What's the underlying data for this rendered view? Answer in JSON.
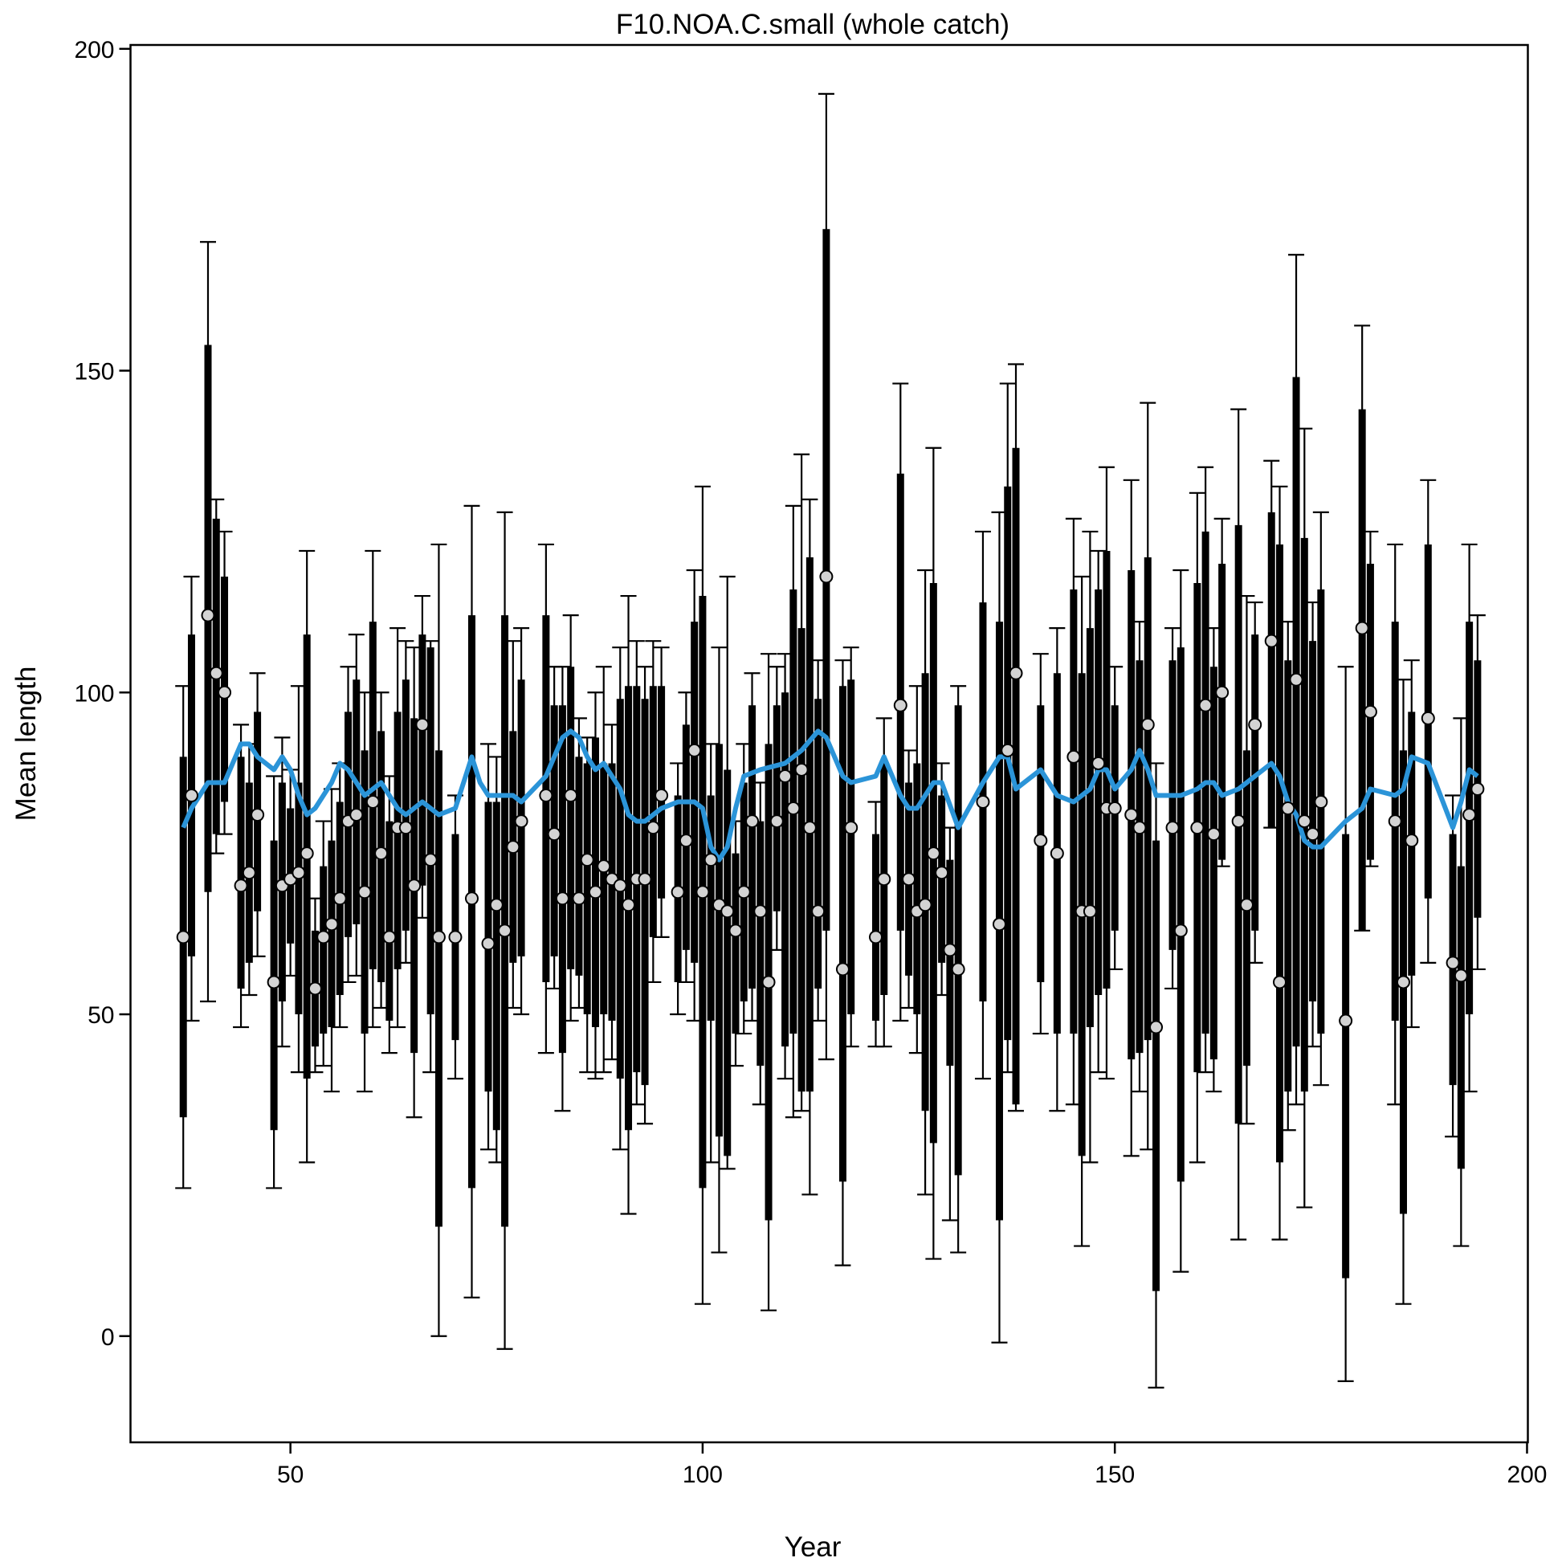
{
  "chart_data": {
    "type": "errorbar",
    "title": "F10.NOA.C.small (whole catch)",
    "xlabel": "Year",
    "ylabel": "Mean length",
    "xlim": [
      30.6,
      200.1
    ],
    "ylim": [
      -16.5,
      200.6
    ],
    "xticks": [
      50,
      100,
      150,
      200
    ],
    "yticks": [
      0,
      50,
      100,
      150,
      200
    ],
    "point_color": "#d3d3d3",
    "bar_color": "#000000",
    "x": [
      37,
      38,
      40,
      41,
      42,
      44,
      45,
      46,
      48,
      49,
      50,
      51,
      52,
      53,
      54,
      55,
      56,
      57,
      58,
      59,
      60,
      61,
      62,
      63,
      64,
      65,
      66,
      67,
      68,
      70,
      72,
      74,
      75,
      76,
      77,
      78,
      81,
      82,
      83,
      84,
      85,
      86,
      87,
      88,
      89,
      90,
      91,
      92,
      93,
      94,
      95,
      97,
      98,
      99,
      100,
      101,
      102,
      103,
      104,
      105,
      106,
      107,
      108,
      109,
      110,
      111,
      112,
      113,
      114,
      115,
      117,
      118,
      121,
      122,
      124,
      125,
      126,
      127,
      128,
      129,
      130,
      131,
      134,
      136,
      137,
      138,
      141,
      143,
      145,
      146,
      147,
      148,
      149,
      150,
      152,
      153,
      154,
      155,
      157,
      158,
      160,
      161,
      162,
      163,
      165,
      166,
      167,
      169,
      170,
      171,
      172,
      173,
      174,
      175,
      178,
      180,
      181,
      184,
      185,
      186,
      188,
      191,
      192,
      193,
      194
    ],
    "values": [
      62,
      84,
      112,
      103,
      100,
      70,
      72,
      81,
      55,
      70,
      71,
      72,
      75,
      54,
      62,
      64,
      68,
      80,
      81,
      69,
      83,
      75,
      62,
      79,
      79,
      70,
      95,
      74,
      62,
      62,
      68,
      61,
      67,
      63,
      76,
      80,
      84,
      78,
      68,
      84,
      68,
      74,
      69,
      73,
      71,
      70,
      67,
      71,
      71,
      79,
      84,
      69,
      77,
      91,
      69,
      74,
      67,
      66,
      63,
      69,
      80,
      66,
      55,
      80,
      87,
      82,
      88,
      79,
      66,
      118,
      57,
      79,
      62,
      71,
      98,
      71,
      66,
      67,
      75,
      72,
      60,
      57,
      83,
      64,
      91,
      103,
      77,
      75,
      90,
      66,
      66,
      89,
      82,
      82,
      81,
      79,
      95,
      48,
      79,
      63,
      79,
      98,
      78,
      100,
      80,
      67,
      95,
      108,
      55,
      82,
      102,
      80,
      78,
      83,
      49,
      110,
      97,
      80,
      55,
      77,
      96,
      58,
      56,
      81,
      85
    ],
    "inner_hi": [
      90,
      109,
      154,
      127,
      118,
      90,
      86,
      97,
      77,
      86,
      82,
      86,
      109,
      63,
      73,
      77,
      83,
      97,
      102,
      91,
      111,
      94,
      80,
      97,
      102,
      96,
      109,
      107,
      91,
      78,
      112,
      83,
      83,
      112,
      94,
      102,
      112,
      98,
      98,
      104,
      90,
      89,
      93,
      89,
      89,
      99,
      101,
      101,
      99,
      101,
      101,
      84,
      95,
      111,
      115,
      84,
      92,
      88,
      75,
      86,
      98,
      80,
      92,
      98,
      100,
      116,
      110,
      121,
      99,
      172,
      101,
      102,
      78,
      89,
      134,
      86,
      89,
      103,
      117,
      84,
      74,
      98,
      114,
      111,
      132,
      138,
      98,
      103,
      116,
      103,
      110,
      116,
      122,
      98,
      119,
      105,
      121,
      77,
      105,
      107,
      117,
      125,
      104,
      120,
      126,
      91,
      109,
      128,
      123,
      105,
      149,
      124,
      108,
      116,
      78,
      144,
      120,
      111,
      91,
      97,
      123,
      78,
      73,
      111,
      105
    ],
    "inner_lo": [
      34,
      59,
      69,
      78,
      83,
      54,
      58,
      66,
      32,
      52,
      61,
      50,
      40,
      45,
      47,
      48,
      53,
      62,
      64,
      47,
      57,
      55,
      49,
      57,
      63,
      44,
      70,
      50,
      17,
      46,
      23,
      38,
      32,
      17,
      58,
      59,
      55,
      59,
      44,
      57,
      56,
      50,
      48,
      50,
      49,
      40,
      32,
      41,
      39,
      62,
      68,
      55,
      60,
      58,
      23,
      49,
      31,
      28,
      47,
      52,
      54,
      42,
      18,
      66,
      45,
      47,
      38,
      38,
      54,
      63,
      24,
      50,
      49,
      53,
      63,
      56,
      50,
      35,
      30,
      58,
      42,
      25,
      52,
      18,
      46,
      36,
      55,
      47,
      47,
      28,
      48,
      53,
      54,
      63,
      43,
      44,
      46,
      7,
      60,
      24,
      41,
      47,
      43,
      74,
      33,
      42,
      63,
      79,
      27,
      38,
      45,
      38,
      52,
      47,
      9,
      63,
      74,
      49,
      19,
      56,
      68,
      39,
      26,
      50,
      65
    ],
    "outer_hi": [
      101,
      118,
      170,
      130,
      125,
      95,
      92,
      103,
      87,
      93,
      88,
      101,
      122,
      68,
      80,
      85,
      89,
      104,
      109,
      100,
      122,
      100,
      87,
      110,
      108,
      107,
      115,
      108,
      123,
      84,
      129,
      92,
      90,
      128,
      108,
      110,
      123,
      104,
      104,
      112,
      96,
      93,
      100,
      104,
      95,
      107,
      115,
      108,
      104,
      108,
      107,
      89,
      100,
      119,
      132,
      92,
      107,
      118,
      80,
      92,
      103,
      86,
      106,
      104,
      106,
      129,
      137,
      130,
      105,
      193,
      105,
      107,
      83,
      96,
      148,
      91,
      101,
      119,
      138,
      89,
      79,
      101,
      125,
      128,
      148,
      151,
      106,
      110,
      127,
      118,
      125,
      122,
      135,
      104,
      133,
      111,
      145,
      89,
      110,
      119,
      131,
      135,
      110,
      127,
      144,
      115,
      114,
      136,
      132,
      111,
      168,
      141,
      114,
      128,
      104,
      157,
      125,
      123,
      102,
      105,
      133,
      84,
      96,
      123,
      112
    ],
    "outer_lo": [
      23,
      49,
      52,
      75,
      78,
      48,
      53,
      59,
      23,
      45,
      56,
      41,
      27,
      41,
      42,
      38,
      48,
      55,
      56,
      38,
      48,
      51,
      44,
      48,
      58,
      34,
      65,
      41,
      0,
      40,
      6,
      29,
      27,
      -2,
      51,
      50,
      44,
      54,
      35,
      49,
      51,
      41,
      40,
      41,
      43,
      29,
      19,
      36,
      33,
      55,
      62,
      50,
      55,
      49,
      5,
      27,
      13,
      26,
      42,
      47,
      49,
      36,
      4,
      60,
      40,
      34,
      35,
      22,
      49,
      43,
      11,
      45,
      45,
      45,
      49,
      51,
      44,
      22,
      12,
      53,
      18,
      13,
      40,
      -1,
      41,
      35,
      47,
      35,
      36,
      14,
      27,
      41,
      40,
      57,
      28,
      38,
      29,
      -8,
      54,
      10,
      27,
      41,
      38,
      73,
      15,
      33,
      58,
      79,
      15,
      32,
      36,
      20,
      45,
      39,
      -7,
      63,
      73,
      36,
      5,
      48,
      58,
      31,
      14,
      38,
      57
    ],
    "smooth": {
      "color": "#2b94d8",
      "x": [
        37,
        38,
        40,
        41,
        42,
        44,
        45,
        46,
        48,
        49,
        50,
        51,
        52,
        53,
        55,
        56,
        57,
        58,
        59,
        60,
        61,
        62,
        63,
        64,
        65,
        66,
        67,
        68,
        70,
        72,
        73,
        74,
        76,
        77,
        78,
        81,
        83,
        84,
        85,
        86,
        87,
        88,
        89,
        90,
        91,
        92,
        93,
        94,
        95,
        97,
        98,
        99,
        100,
        101,
        102,
        103,
        104,
        105,
        107,
        110,
        112,
        114,
        115,
        117,
        118,
        121,
        122,
        124,
        125,
        126,
        128,
        129,
        131,
        134,
        136,
        137,
        138,
        141,
        143,
        145,
        146,
        147,
        148,
        149,
        150,
        152,
        153,
        154,
        155,
        157,
        158,
        160,
        161,
        162,
        163,
        165,
        166,
        169,
        170,
        171,
        172,
        173,
        174,
        175,
        178,
        180,
        181,
        184,
        185,
        186,
        188,
        191,
        192,
        193,
        194
      ],
      "values": [
        79,
        82,
        86,
        86,
        86,
        92,
        92,
        90,
        88,
        90,
        88,
        84,
        81,
        82,
        86,
        89,
        88,
        86,
        84,
        85,
        86,
        84,
        82,
        81,
        82,
        83,
        82,
        81,
        82,
        90,
        86,
        84,
        84,
        84,
        83,
        87,
        93,
        94,
        93,
        90,
        88,
        89,
        87,
        85,
        81,
        80,
        80,
        81,
        82,
        83,
        83,
        83,
        82,
        76,
        74,
        76,
        82,
        87,
        88,
        89,
        91,
        94,
        93,
        87,
        86,
        87,
        90,
        84,
        82,
        82,
        86,
        86,
        79,
        86,
        90,
        90,
        85,
        88,
        84,
        83,
        84,
        85,
        88,
        88,
        85,
        88,
        91,
        88,
        84,
        84,
        84,
        85,
        86,
        86,
        84,
        85,
        86,
        89,
        87,
        83,
        81,
        77,
        76,
        76,
        80,
        82,
        85,
        84,
        85,
        90,
        89,
        79,
        83,
        88,
        87
      ]
    }
  }
}
